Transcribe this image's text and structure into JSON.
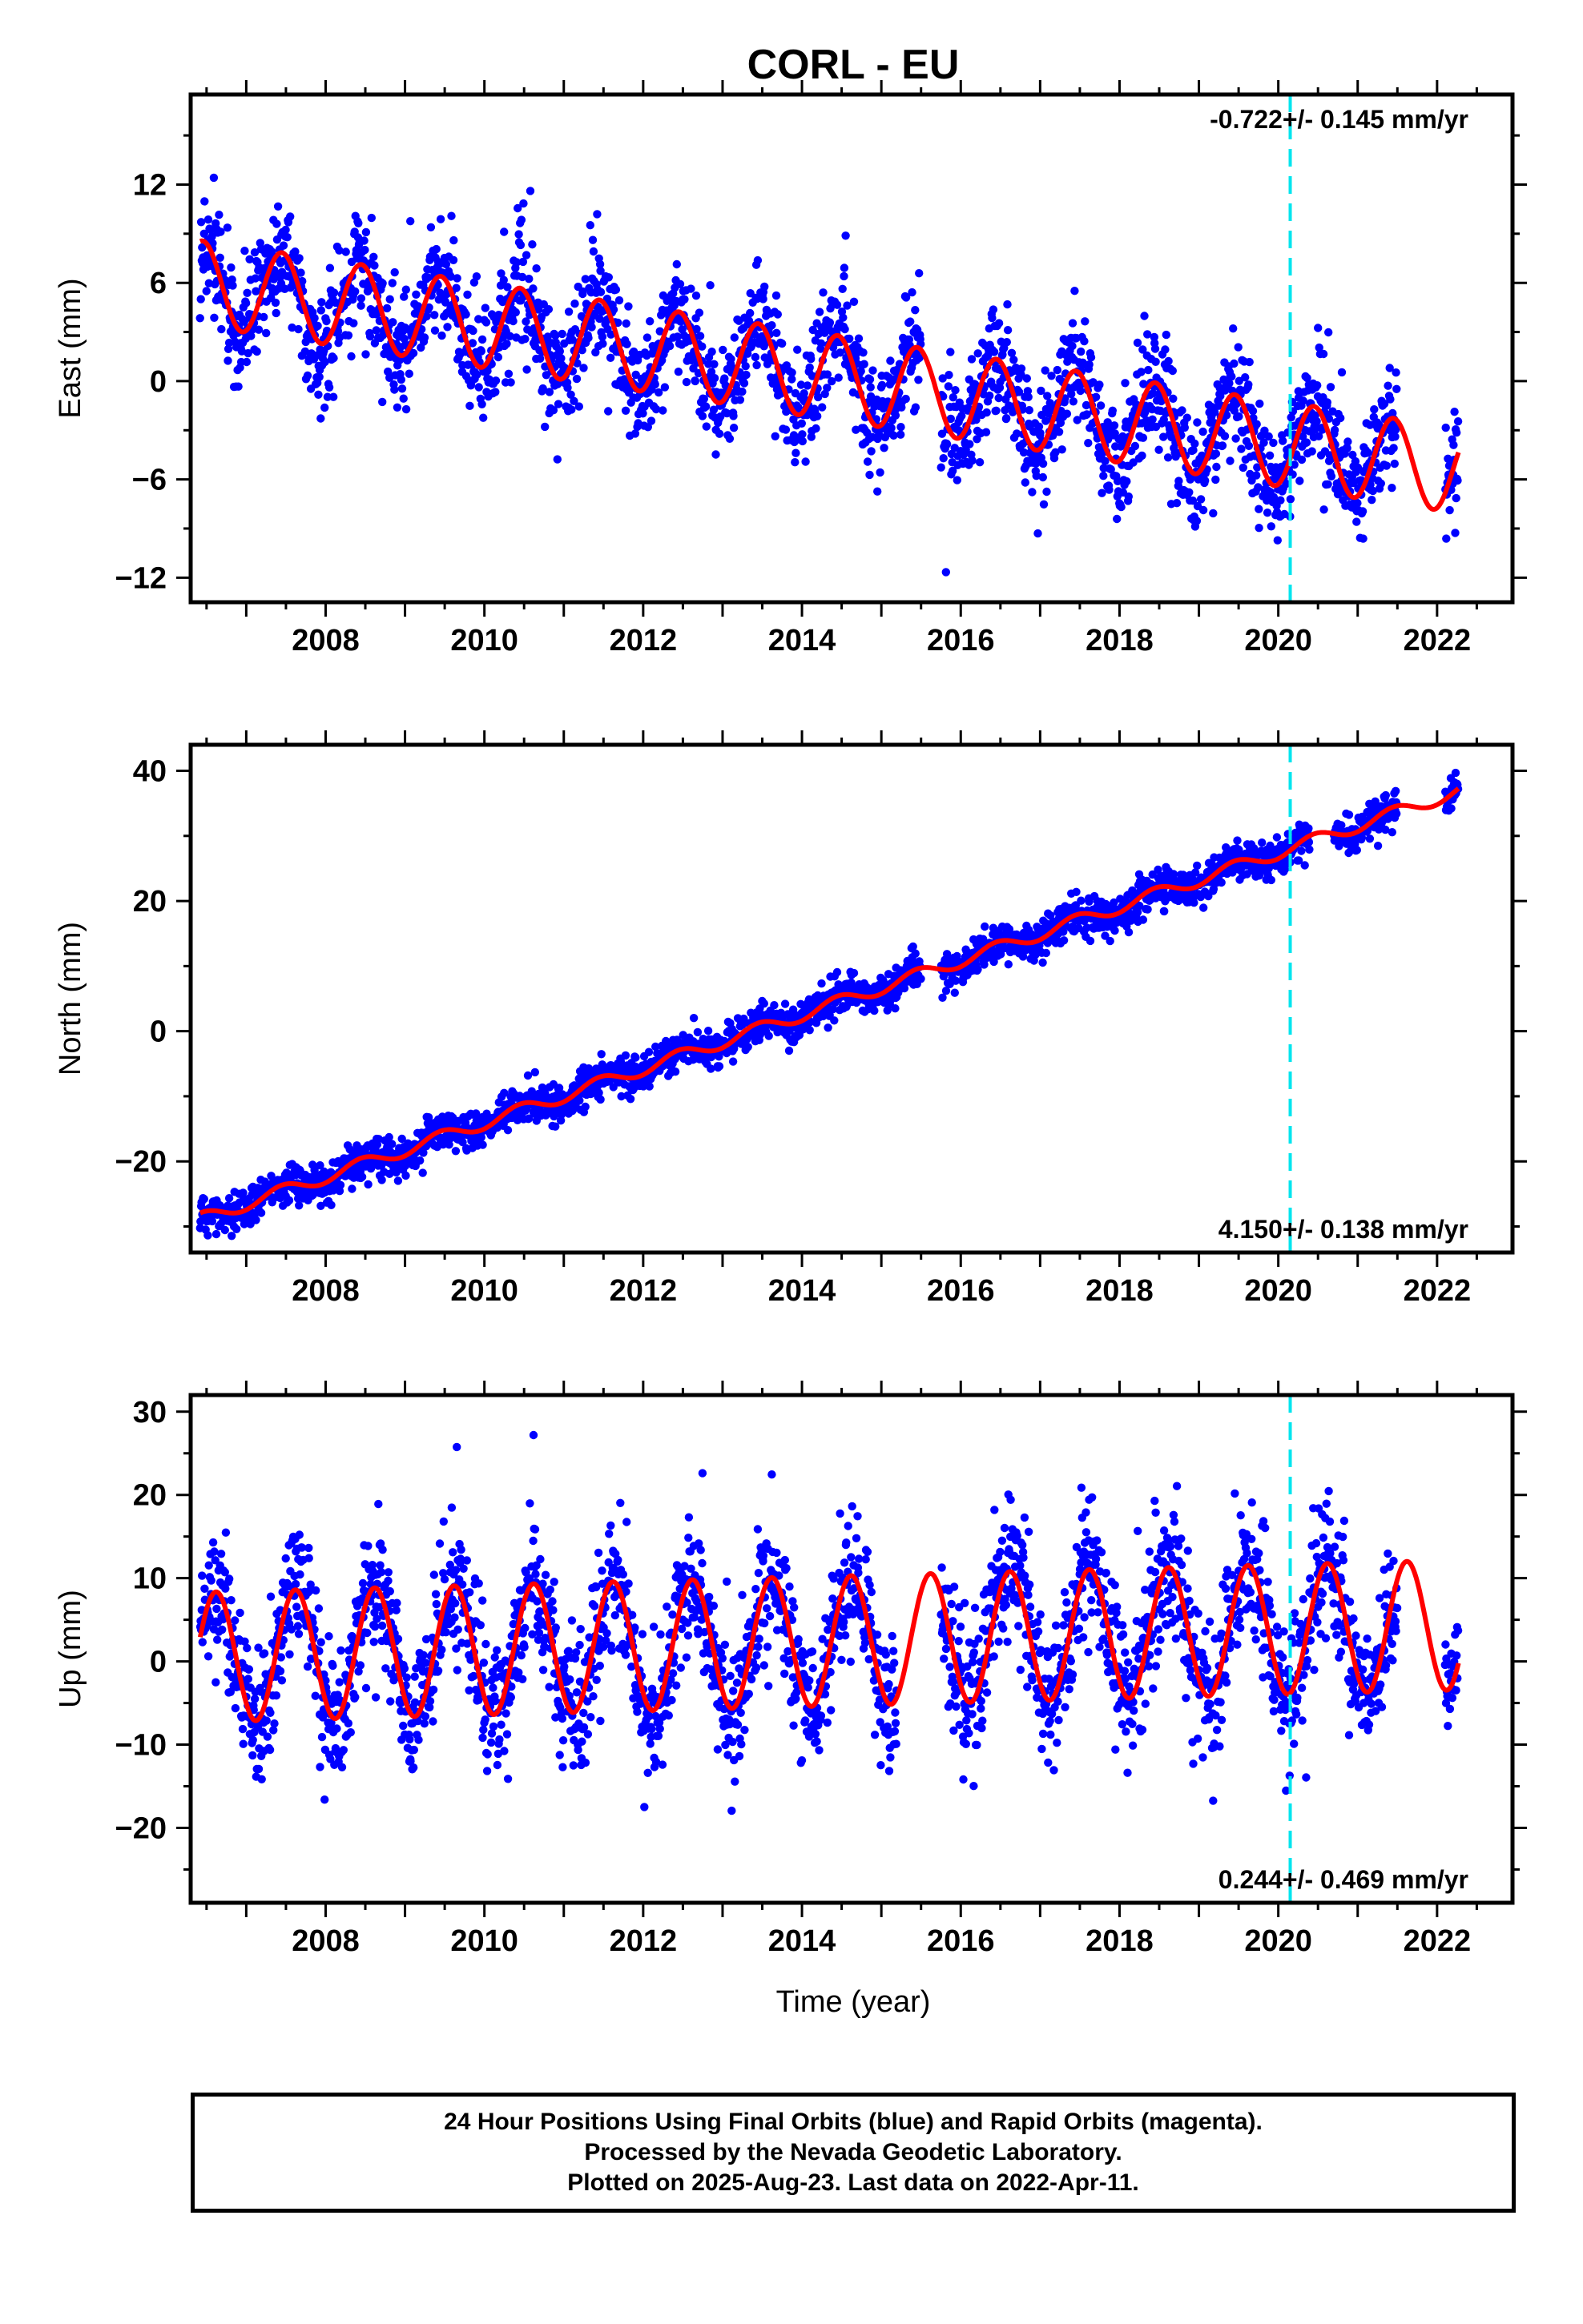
{
  "title": "CORL - EU",
  "colors": {
    "data_points": "#0000ff",
    "model_fit": "#ff0000",
    "offset_line": "#00e5ee",
    "axes": "#000000"
  },
  "xlabel": "Time (year)",
  "offset_epoch": 2020.15,
  "chart_data": [
    {
      "type": "scatter",
      "panel": "east",
      "ylabel": "East (mm)",
      "xlim": [
        2006.3,
        2022.95
      ],
      "ylim": [
        -13.5,
        17.5
      ],
      "xticks": [
        2008,
        2010,
        2012,
        2014,
        2016,
        2018,
        2020,
        2022
      ],
      "yticks": [
        -12,
        -6,
        0,
        6,
        12
      ],
      "rate_label": "-0.722+/- 0.145 mm/yr",
      "rate_label_position": "top-right",
      "series": [
        {
          "name": "Final Orbits (blue)",
          "kind": "points",
          "start": 2006.42,
          "end": 2022.27,
          "gaps": [
            [
              2015.5,
              2015.75
            ],
            [
              2021.5,
              2022.1
            ]
          ],
          "scatter_sd": 1.7
        },
        {
          "kind": "model",
          "trend_intercept_at_2006.4": 6.0,
          "trend_rate_mm_per_yr": -0.722,
          "annual_amplitude": 2.6,
          "annual_peak_phase_year_fraction": 0.45
        }
      ]
    },
    {
      "type": "scatter",
      "panel": "north",
      "ylabel": "North (mm)",
      "xlim": [
        2006.3,
        2022.95
      ],
      "ylim": [
        -34,
        44
      ],
      "xticks": [
        2008,
        2010,
        2012,
        2014,
        2016,
        2018,
        2020,
        2022
      ],
      "yticks": [
        -20,
        0,
        20,
        40
      ],
      "rate_label": "4.150+/- 0.138 mm/yr",
      "rate_label_position": "bottom-right",
      "series": [
        {
          "name": "Final Orbits (blue)",
          "kind": "points",
          "start": 2006.42,
          "end": 2022.27,
          "gaps": [
            [
              2015.5,
              2015.75
            ],
            [
              2020.4,
              2020.7
            ],
            [
              2021.5,
              2022.1
            ]
          ],
          "scatter_sd": 1.4
        },
        {
          "kind": "model",
          "trend_intercept_at_2006.4": -29.0,
          "trend_rate_mm_per_yr": 4.15,
          "annual_amplitude": 1.0,
          "annual_peak_phase_year_fraction": 0.45
        }
      ]
    },
    {
      "type": "scatter",
      "panel": "up",
      "ylabel": "Up (mm)",
      "xlim": [
        2006.3,
        2022.95
      ],
      "ylim": [
        -29,
        32
      ],
      "xticks": [
        2008,
        2010,
        2012,
        2014,
        2016,
        2018,
        2020,
        2022
      ],
      "yticks": [
        -20,
        -10,
        0,
        10,
        20,
        30
      ],
      "rate_label": "0.244+/- 0.469 mm/yr",
      "rate_label_position": "bottom-right",
      "series": [
        {
          "name": "Final Orbits (blue)",
          "kind": "points",
          "start": 2006.42,
          "end": 2022.27,
          "gaps": [
            [
              2015.2,
              2015.75
            ],
            [
              2021.5,
              2022.1
            ]
          ],
          "scatter_sd": 4.0
        },
        {
          "kind": "model",
          "trend_intercept_at_2006.4": 0.5,
          "trend_rate_mm_per_yr": 0.244,
          "annual_amplitude": 7.8,
          "annual_peak_phase_year_fraction": 0.62
        }
      ]
    }
  ],
  "footer": {
    "line1": "24 Hour Positions Using Final Orbits (blue) and Rapid Orbits (magenta).",
    "line2": "Processed by the Nevada Geodetic Laboratory.",
    "line3": "Plotted on 2025-Aug-23. Last data on 2022-Apr-11."
  }
}
